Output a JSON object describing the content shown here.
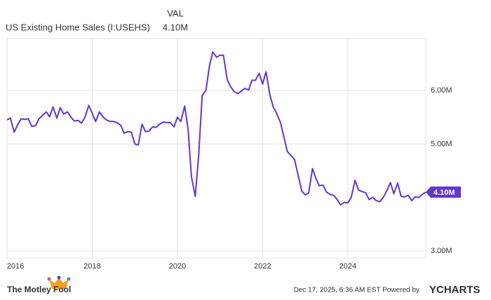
{
  "chart_data": {
    "type": "line",
    "title": "US Existing Home Sales (I:USEHS)",
    "value_heading": "VAL",
    "last_value_label": "4.10M",
    "x": [
      2016.0,
      2016.08,
      2016.17,
      2016.25,
      2016.33,
      2016.42,
      2016.5,
      2016.58,
      2016.67,
      2016.75,
      2016.83,
      2016.92,
      2017.0,
      2017.08,
      2017.17,
      2017.25,
      2017.33,
      2017.42,
      2017.5,
      2017.58,
      2017.67,
      2017.75,
      2017.83,
      2017.92,
      2018.0,
      2018.08,
      2018.17,
      2018.25,
      2018.33,
      2018.42,
      2018.5,
      2018.58,
      2018.67,
      2018.75,
      2018.83,
      2018.92,
      2019.0,
      2019.08,
      2019.17,
      2019.25,
      2019.33,
      2019.42,
      2019.5,
      2019.58,
      2019.67,
      2019.75,
      2019.83,
      2019.92,
      2020.0,
      2020.08,
      2020.17,
      2020.25,
      2020.33,
      2020.42,
      2020.5,
      2020.58,
      2020.67,
      2020.75,
      2020.83,
      2020.92,
      2021.0,
      2021.08,
      2021.17,
      2021.25,
      2021.33,
      2021.42,
      2021.5,
      2021.58,
      2021.67,
      2021.75,
      2021.83,
      2021.92,
      2022.0,
      2022.08,
      2022.17,
      2022.25,
      2022.33,
      2022.42,
      2022.5,
      2022.58,
      2022.67,
      2022.75,
      2022.83,
      2022.92,
      2023.0,
      2023.08,
      2023.17,
      2023.25,
      2023.33,
      2023.42,
      2023.5,
      2023.58,
      2023.67,
      2023.75,
      2023.83,
      2023.92,
      2024.0,
      2024.08,
      2024.17,
      2024.25,
      2024.33,
      2024.42,
      2024.5,
      2024.58,
      2024.67,
      2024.75,
      2024.83,
      2024.92,
      2025.0,
      2025.08,
      2025.17,
      2025.25,
      2025.33,
      2025.42,
      2025.5,
      2025.58,
      2025.67,
      2025.75,
      2025.83
    ],
    "series": [
      {
        "name": "US Existing Home Sales",
        "color": "#6236d1",
        "values": [
          5.45,
          5.48,
          5.22,
          5.36,
          5.47,
          5.46,
          5.47,
          5.33,
          5.34,
          5.47,
          5.53,
          5.6,
          5.51,
          5.69,
          5.48,
          5.68,
          5.56,
          5.6,
          5.5,
          5.43,
          5.44,
          5.39,
          5.5,
          5.72,
          5.57,
          5.42,
          5.6,
          5.51,
          5.45,
          5.42,
          5.42,
          5.4,
          5.35,
          5.2,
          5.23,
          5.22,
          5.0,
          4.98,
          5.37,
          5.23,
          5.24,
          5.32,
          5.31,
          5.37,
          5.41,
          5.4,
          5.4,
          5.32,
          5.5,
          5.42,
          5.71,
          5.28,
          4.38,
          4.02,
          4.8,
          5.9,
          6.0,
          6.45,
          6.72,
          6.62,
          6.66,
          6.66,
          6.2,
          6.07,
          5.98,
          5.94,
          5.99,
          6.04,
          6.01,
          6.19,
          6.19,
          6.32,
          6.12,
          6.35,
          5.92,
          5.69,
          5.57,
          5.4,
          5.13,
          4.86,
          4.78,
          4.71,
          4.43,
          4.12,
          4.05,
          4.08,
          4.54,
          4.36,
          4.22,
          4.23,
          4.1,
          4.06,
          4.04,
          3.96,
          3.86,
          3.91,
          3.9,
          4.0,
          4.32,
          4.14,
          4.11,
          4.09,
          3.96,
          4.0,
          3.94,
          3.92,
          4.0,
          4.13,
          4.28,
          4.07,
          4.27,
          4.02,
          4.01,
          4.04,
          3.94,
          4.01,
          4.0,
          4.06,
          4.1
        ]
      }
    ],
    "xlim": [
      2016,
      2025.83
    ],
    "xticks": [
      2016,
      2018,
      2020,
      2022,
      2024
    ],
    "ylim": [
      2.87,
      6.97
    ],
    "yticks": [
      {
        "value": 3,
        "label": "3.00M"
      },
      {
        "value": 5,
        "label": "5.00M"
      },
      {
        "value": 6,
        "label": "6.00M"
      }
    ],
    "grid": true,
    "footer": {
      "brand": "The Motley Fool",
      "timestamp": "Dec 17, 2025, 6:36 AM EST Powered by",
      "provider": "YCHARTS"
    }
  }
}
